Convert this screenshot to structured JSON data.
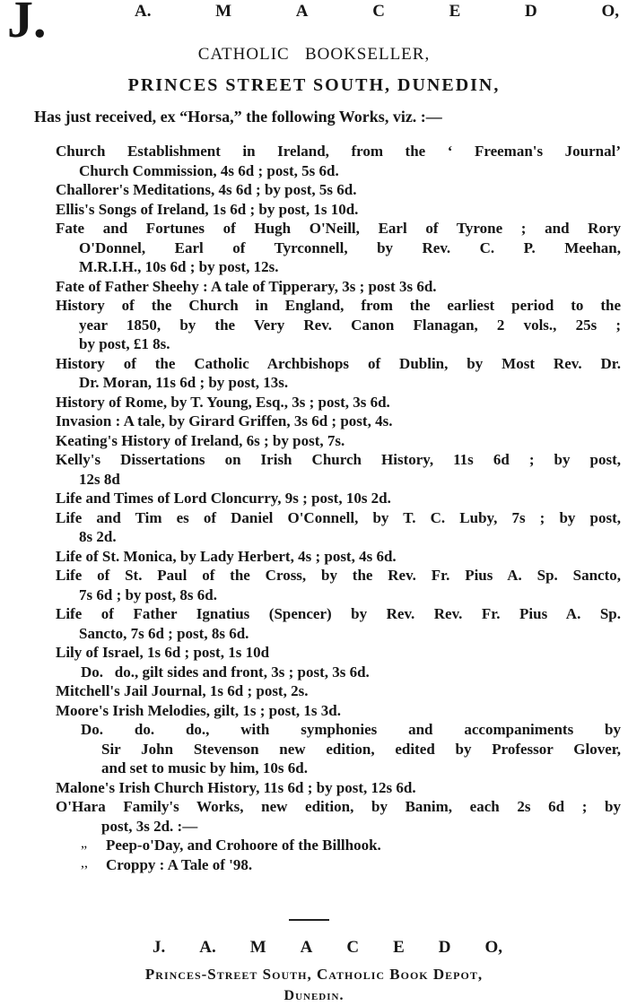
{
  "header": {
    "initial": "J.",
    "name_letters": [
      "A.",
      "M",
      "A",
      "C",
      "E",
      "D",
      "O,"
    ],
    "subtitle": "CATHOLIC   BOOKSELLER,",
    "address": "PRINCES STREET SOUTH, DUNEDIN,",
    "intro": "Has just received, ex “Horsa,” the following Works, viz. :—"
  },
  "works": [
    {
      "lines": [
        "Church Establishment in Ireland, from the ‘ Freeman's Journal’",
        "Church Commission, 4s 6d ; post, 5s 6d."
      ]
    },
    {
      "lines": [
        "Challorer's Meditations, 4s 6d ; by post, 5s 6d."
      ]
    },
    {
      "lines": [
        "Ellis's Songs of Ireland, 1s 6d ; by post, 1s 10d."
      ]
    },
    {
      "lines": [
        "Fate and Fortunes of Hugh O'Neill, Earl of Tyrone ; and Rory",
        "O'Donnel, Earl of Tyrconnell, by Rev. C. P. Meehan,",
        "M.R.I.H., 10s 6d ; by post, 12s."
      ]
    },
    {
      "lines": [
        "Fate of Father Sheehy : A tale of Tipperary, 3s ; post 3s 6d."
      ]
    },
    {
      "lines": [
        "History of the Church in England, from the earliest period to the",
        "year 1850, by the Very Rev. Canon Flanagan, 2 vols., 25s ;",
        "by post, £1 8s."
      ]
    },
    {
      "lines": [
        "History of the Catholic Archbishops of Dublin, by Most Rev. Dr.",
        "Dr. Moran, 11s 6d ; by post, 13s."
      ]
    },
    {
      "lines": [
        "History of Rome, by T. Young, Esq., 3s ; post, 3s 6d."
      ]
    },
    {
      "lines": [
        "Invasion : A tale, by Girard Griffen, 3s 6d ; post, 4s."
      ]
    },
    {
      "lines": [
        "Keating's History of Ireland, 6s ; by post, 7s."
      ]
    },
    {
      "lines": [
        "Kelly's Dissertations on Irish Church History, 11s 6d ; by post,",
        "12s 8d"
      ]
    },
    {
      "lines": [
        "Life and Times of Lord Cloncurry, 9s ; post, 10s 2d."
      ]
    },
    {
      "lines": [
        "Life and Tim es of Daniel O'Connell, by T. C. Luby, 7s ; by post,",
        "8s 2d."
      ]
    },
    {
      "lines": [
        "Life of St. Monica, by Lady Herbert, 4s ; post, 4s 6d."
      ]
    },
    {
      "lines": [
        "Life of St. Paul of the Cross, by the Rev. Fr. Pius A. Sp. Sancto,",
        "7s 6d ; by post, 8s 6d."
      ]
    },
    {
      "lines": [
        "Life of Father Ignatius (Spencer) by Rev. Rev. Fr. Pius A. Sp.",
        "Sancto, 7s 6d ; post, 8s 6d."
      ]
    },
    {
      "lines": [
        "Lily of Israel, 1s 6d ; post, 1s 10d"
      ]
    },
    {
      "lines": [
        "Do.   do., gilt sides and front, 3s ; post, 3s 6d."
      ]
    },
    {
      "lines": [
        "Mitchell's Jail Journal, 1s 6d ; post, 2s."
      ]
    },
    {
      "lines": [
        "Moore's Irish Melodies, gilt, 1s ; post, 1s 3d."
      ]
    },
    {
      "lines": [
        "Do.     do.     do., with symphonies and accompaniments by",
        "Sir John Stevenson new edition, edited by Professor Glover,",
        "and set to music by him, 10s 6d."
      ]
    },
    {
      "lines": [
        "Malone's Irish Church History, 11s 6d ; by post, 12s 6d."
      ]
    },
    {
      "lines": [
        "O'Hara Family's Works, new edition, by Banim, each 2s 6d ; by",
        "post, 3s 2d. :—"
      ]
    },
    {
      "mark": "„",
      "lines": [
        "Peep-o'Day, and Crohoore of the Billhook."
      ]
    },
    {
      "mark": ",,",
      "lines": [
        "Croppy : A Tale of '98."
      ]
    }
  ],
  "footer": {
    "name_letters": [
      "J.",
      "A.",
      "M",
      "A",
      "C",
      "E",
      "D",
      "O,"
    ],
    "address": "Princes-Street South, Catholic Book Depot,",
    "city": "Dunedin."
  }
}
